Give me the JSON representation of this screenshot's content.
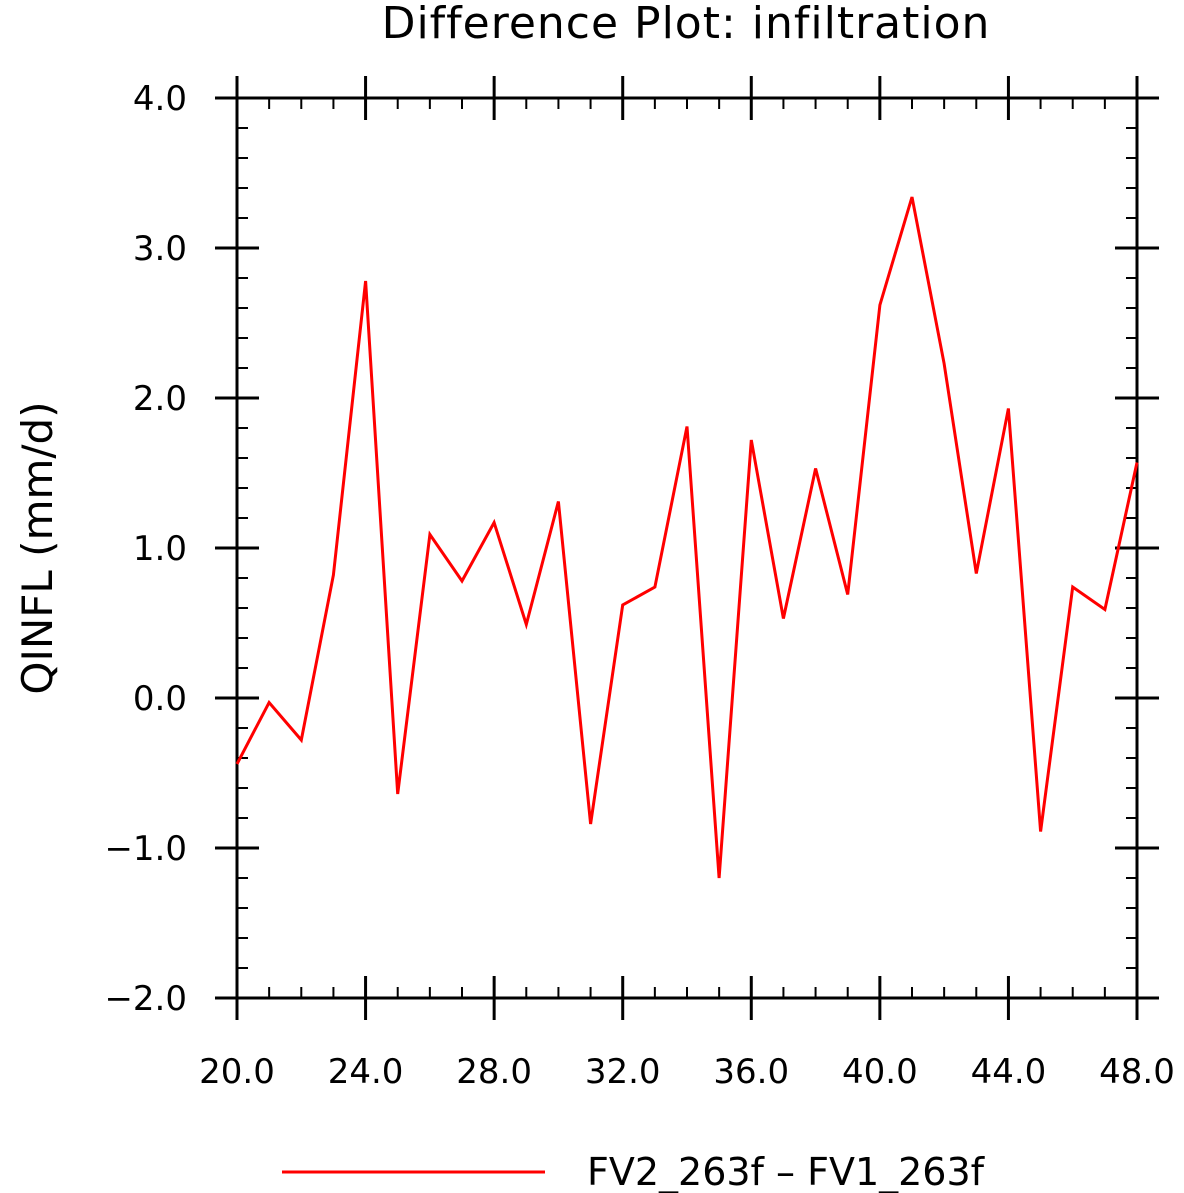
{
  "chart_data": {
    "type": "line",
    "title": "Difference Plot: infiltration",
    "xlabel": "",
    "ylabel": "QINFL   (mm/d)",
    "xlim": [
      20,
      48
    ],
    "ylim": [
      -2,
      4
    ],
    "x_ticks": [
      20,
      24,
      28,
      32,
      36,
      40,
      44,
      48
    ],
    "x_tick_labels": [
      "20.0",
      "24.0",
      "28.0",
      "32.0",
      "36.0",
      "40.0",
      "44.0",
      "48.0"
    ],
    "x_minor_step": 1,
    "y_ticks": [
      -2,
      -1,
      0,
      1,
      2,
      3,
      4
    ],
    "y_tick_labels": [
      "−2.0",
      "−1.0",
      "0.0",
      "1.0",
      "2.0",
      "3.0",
      "4.0"
    ],
    "y_minor_step": 0.2,
    "series": [
      {
        "name": "FV2_263f – FV1_263f",
        "color": "#ff0000",
        "x": [
          20,
          21,
          22,
          23,
          24,
          25,
          26,
          27,
          28,
          29,
          30,
          31,
          32,
          33,
          34,
          35,
          36,
          37,
          38,
          39,
          40,
          41,
          42,
          43,
          44,
          45,
          46,
          47,
          48
        ],
        "values": [
          -0.44,
          -0.03,
          -0.28,
          0.82,
          2.78,
          -0.64,
          1.09,
          0.78,
          1.17,
          0.49,
          1.31,
          -0.84,
          0.62,
          0.74,
          1.81,
          -1.2,
          1.72,
          0.53,
          1.53,
          0.69,
          2.62,
          3.34,
          2.23,
          0.83,
          1.93,
          -0.89,
          0.74,
          0.59,
          1.57
        ]
      }
    ],
    "legend": {
      "placement": "bottom-center"
    }
  }
}
